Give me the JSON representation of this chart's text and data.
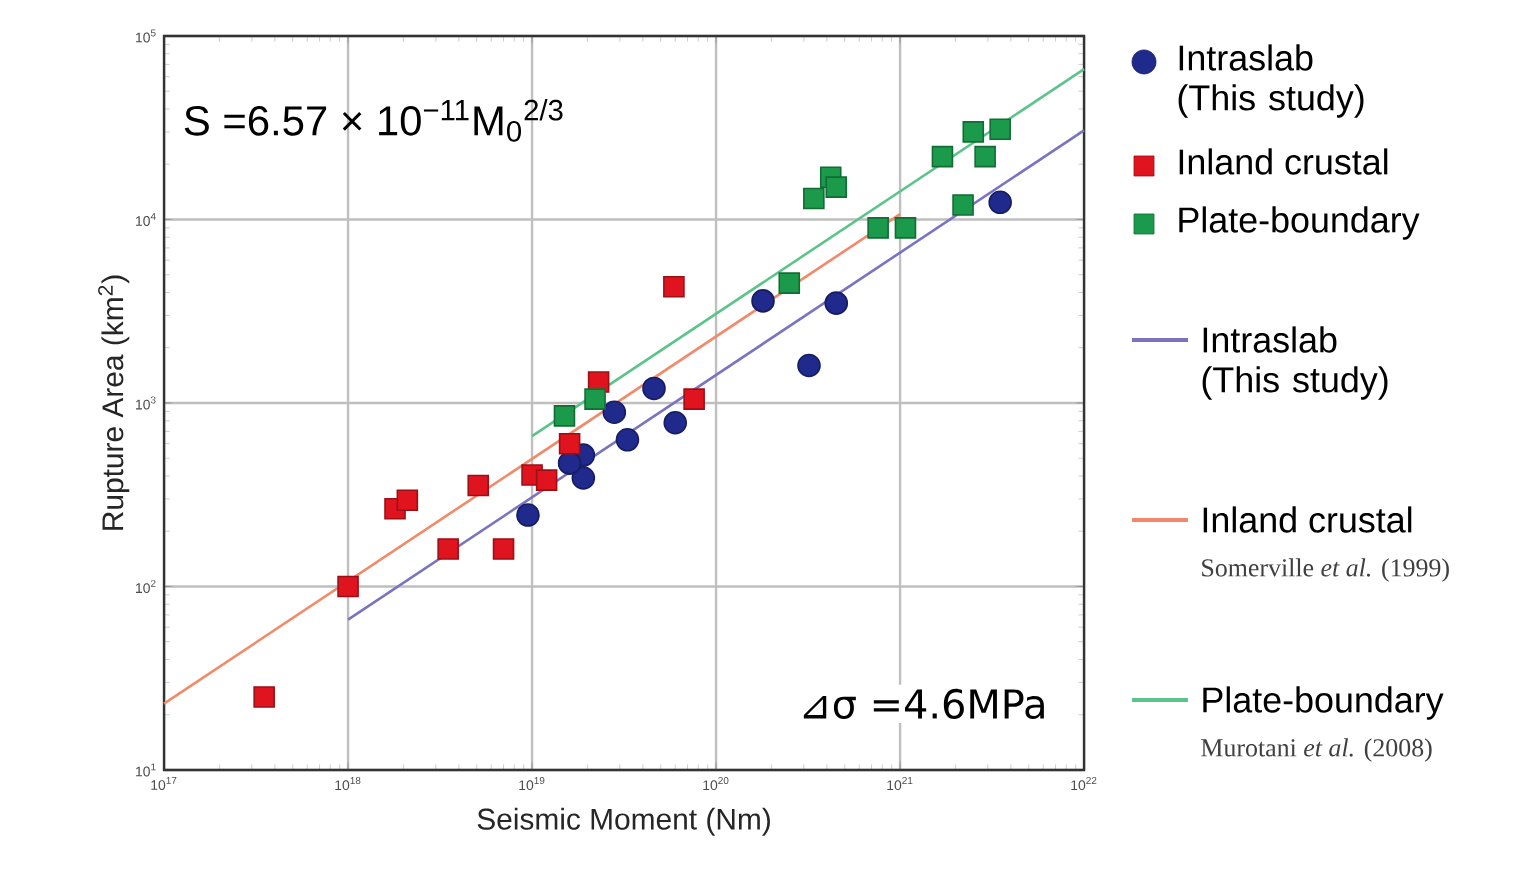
{
  "chart_data": {
    "type": "scatter",
    "xlabel": "Seismic Moment (Nm)",
    "ylabel": "Rupture Area (km$^{2}$)",
    "log": "xy",
    "grid": true,
    "legend": "right",
    "xlim": [
      1e+17,
      1e+22
    ],
    "ylim": [
      10,
      100000
    ],
    "xticks": [
      {
        "value": 1e+17,
        "label": "10$^{17}$"
      },
      {
        "value": 1e+18,
        "label": "10$^{18}$"
      },
      {
        "value": 1e+19,
        "label": "10$^{19}$"
      },
      {
        "value": 1e+20,
        "label": "10$^{20}$"
      },
      {
        "value": 1e+21,
        "label": "10$^{21}$"
      },
      {
        "value": 1e+22,
        "label": "10$^{22}$"
      }
    ],
    "yticks": [
      {
        "value": 10,
        "label": "10$^{1}$"
      },
      {
        "value": 100,
        "label": "10$^{2}$"
      },
      {
        "value": 1000,
        "label": "10$^{3}$"
      },
      {
        "value": 10000,
        "label": "10$^{4}$"
      },
      {
        "value": 100000,
        "label": "10$^{5}$"
      }
    ],
    "annotations": [
      "S =6.57 × 10$^{−11}$M$_{0}$$^{2/3}$",
      "⊿σ =4.6MPa",
      "Somerville *et al.* (1999)",
      "Murotani *et al.* (2008)"
    ],
    "series": [
      {
        "name": "Intraslab (This study)",
        "color": "#1f2a8c",
        "marker": "circle",
        "x": [
          9.5e+18,
          1.9e+19,
          1.9e+19,
          1.6e+19,
          2.8e+19,
          3.3e+19,
          4.6e+19,
          6e+19,
          1.8e+20,
          4.5e+20,
          3.2e+20,
          3.5e+21
        ],
        "values": [
          245,
          520,
          390,
          470,
          890,
          630,
          1200,
          780,
          3600,
          3500,
          1600,
          12400
        ]
      },
      {
        "name": "Inland crustal",
        "color": "#e0141e",
        "marker": "square",
        "x": [
          3.5e+17,
          1e+18,
          1.8e+18,
          2.1e+18,
          5.1e+18,
          3.5e+18,
          7e+18,
          1e+19,
          1.2e+19,
          1.6e+19,
          2.3e+19,
          5.9e+19,
          7.6e+19
        ],
        "values": [
          25,
          100,
          265,
          295,
          355,
          160,
          160,
          405,
          380,
          600,
          1300,
          4300,
          1050
        ]
      },
      {
        "name": "Plate-boundary",
        "color": "#1a9a4a",
        "marker": "square",
        "x": [
          1.5e+19,
          2.2e+19,
          2.5e+20,
          3.4e+20,
          4.2e+20,
          4.5e+20,
          7.6e+20,
          1.07e+21,
          1.7e+21,
          2.5e+21,
          3.5e+21,
          2.9e+21,
          2.2e+21
        ],
        "values": [
          850,
          1050,
          4500,
          13000,
          17000,
          15000,
          9000,
          9000,
          22000,
          30000,
          31000,
          22000,
          12000
        ]
      },
      {
        "name": "Intraslab (This study)",
        "type": "line",
        "color": "#7a74c0",
        "x": [
          1e+18,
          1e+22
        ],
        "values": [
          66,
          30600
        ]
      },
      {
        "name": "Inland crustal",
        "type": "line",
        "color": "#f08a6a",
        "x": [
          1e+17,
          1e+21
        ],
        "values": [
          23,
          10700
        ]
      },
      {
        "name": "Plate-boundary",
        "type": "line",
        "color": "#5cc48a",
        "x": [
          1e+19,
          1e+22
        ],
        "values": [
          660,
          66000
        ]
      }
    ]
  }
}
